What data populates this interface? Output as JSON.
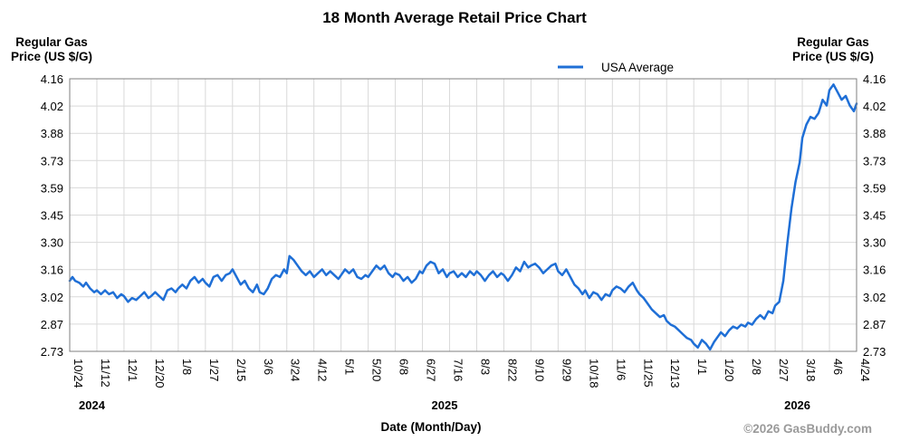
{
  "chart_data": {
    "type": "line",
    "title": "18 Month Average Retail Price Chart",
    "ylabel_left": [
      "Regular Gas",
      "Price (US $/G)"
    ],
    "ylabel_right": [
      "Regular Gas",
      "Price (US $/G)"
    ],
    "xlabel": "Date (Month/Day)",
    "ylim": [
      2.73,
      4.16
    ],
    "y_ticks": [
      "4.16",
      "4.02",
      "3.88",
      "3.73",
      "3.59",
      "3.45",
      "3.30",
      "3.16",
      "3.02",
      "2.87",
      "2.73"
    ],
    "x_tick_labels": [
      "10/24",
      "11/12",
      "12/1",
      "12/20",
      "1/8",
      "1/27",
      "2/15",
      "3/6",
      "3/24",
      "4/12",
      "5/1",
      "5/20",
      "6/8",
      "6/27",
      "7/16",
      "8/3",
      "8/22",
      "9/10",
      "9/29",
      "10/18",
      "11/6",
      "11/25",
      "12/13",
      "1/1",
      "1/20",
      "2/8",
      "2/27",
      "3/18",
      "4/6",
      "4/24"
    ],
    "years": [
      {
        "label": "2024",
        "at_tick": 0
      },
      {
        "label": "2025",
        "at_tick": 13
      },
      {
        "label": "2026",
        "at_tick": 26
      }
    ],
    "legend": "USA Average",
    "legend_position": "top-center",
    "grid": true,
    "series": [
      {
        "name": "USA Average",
        "color": "#1f6fd6",
        "points": [
          [
            0,
            3.1
          ],
          [
            0.1,
            3.12
          ],
          [
            0.2,
            3.1
          ],
          [
            0.35,
            3.09
          ],
          [
            0.5,
            3.07
          ],
          [
            0.6,
            3.09
          ],
          [
            0.75,
            3.06
          ],
          [
            0.9,
            3.04
          ],
          [
            1.0,
            3.05
          ],
          [
            1.15,
            3.03
          ],
          [
            1.3,
            3.05
          ],
          [
            1.45,
            3.03
          ],
          [
            1.6,
            3.04
          ],
          [
            1.75,
            3.01
          ],
          [
            1.9,
            3.03
          ],
          [
            2.0,
            3.02
          ],
          [
            2.15,
            2.99
          ],
          [
            2.3,
            3.01
          ],
          [
            2.45,
            3.0
          ],
          [
            2.6,
            3.02
          ],
          [
            2.75,
            3.04
          ],
          [
            2.9,
            3.01
          ],
          [
            3.0,
            3.02
          ],
          [
            3.15,
            3.04
          ],
          [
            3.3,
            3.02
          ],
          [
            3.45,
            3.0
          ],
          [
            3.6,
            3.05
          ],
          [
            3.75,
            3.06
          ],
          [
            3.9,
            3.04
          ],
          [
            4.0,
            3.06
          ],
          [
            4.15,
            3.08
          ],
          [
            4.3,
            3.06
          ],
          [
            4.45,
            3.1
          ],
          [
            4.6,
            3.12
          ],
          [
            4.75,
            3.09
          ],
          [
            4.9,
            3.11
          ],
          [
            5.0,
            3.09
          ],
          [
            5.15,
            3.07
          ],
          [
            5.3,
            3.12
          ],
          [
            5.45,
            3.13
          ],
          [
            5.6,
            3.1
          ],
          [
            5.75,
            3.13
          ],
          [
            5.9,
            3.14
          ],
          [
            6.0,
            3.16
          ],
          [
            6.15,
            3.12
          ],
          [
            6.3,
            3.08
          ],
          [
            6.45,
            3.1
          ],
          [
            6.6,
            3.06
          ],
          [
            6.75,
            3.04
          ],
          [
            6.9,
            3.08
          ],
          [
            7.0,
            3.04
          ],
          [
            7.15,
            3.03
          ],
          [
            7.3,
            3.06
          ],
          [
            7.45,
            3.11
          ],
          [
            7.6,
            3.13
          ],
          [
            7.75,
            3.12
          ],
          [
            7.9,
            3.16
          ],
          [
            8.0,
            3.14
          ],
          [
            8.1,
            3.23
          ],
          [
            8.25,
            3.21
          ],
          [
            8.4,
            3.18
          ],
          [
            8.55,
            3.15
          ],
          [
            8.7,
            3.13
          ],
          [
            8.85,
            3.15
          ],
          [
            9.0,
            3.12
          ],
          [
            9.15,
            3.14
          ],
          [
            9.3,
            3.16
          ],
          [
            9.45,
            3.13
          ],
          [
            9.6,
            3.15
          ],
          [
            9.75,
            3.13
          ],
          [
            9.9,
            3.11
          ],
          [
            10.0,
            3.13
          ],
          [
            10.15,
            3.16
          ],
          [
            10.3,
            3.14
          ],
          [
            10.45,
            3.16
          ],
          [
            10.6,
            3.12
          ],
          [
            10.75,
            3.11
          ],
          [
            10.9,
            3.13
          ],
          [
            11.0,
            3.12
          ],
          [
            11.15,
            3.15
          ],
          [
            11.3,
            3.18
          ],
          [
            11.45,
            3.16
          ],
          [
            11.6,
            3.18
          ],
          [
            11.75,
            3.14
          ],
          [
            11.9,
            3.12
          ],
          [
            12.0,
            3.14
          ],
          [
            12.15,
            3.13
          ],
          [
            12.3,
            3.1
          ],
          [
            12.45,
            3.12
          ],
          [
            12.6,
            3.09
          ],
          [
            12.75,
            3.11
          ],
          [
            12.9,
            3.15
          ],
          [
            13.0,
            3.14
          ],
          [
            13.15,
            3.18
          ],
          [
            13.3,
            3.2
          ],
          [
            13.45,
            3.19
          ],
          [
            13.6,
            3.14
          ],
          [
            13.75,
            3.16
          ],
          [
            13.9,
            3.12
          ],
          [
            14.0,
            3.14
          ],
          [
            14.15,
            3.15
          ],
          [
            14.3,
            3.12
          ],
          [
            14.45,
            3.14
          ],
          [
            14.6,
            3.12
          ],
          [
            14.75,
            3.15
          ],
          [
            14.9,
            3.13
          ],
          [
            15.0,
            3.15
          ],
          [
            15.15,
            3.13
          ],
          [
            15.3,
            3.1
          ],
          [
            15.45,
            3.13
          ],
          [
            15.6,
            3.15
          ],
          [
            15.75,
            3.12
          ],
          [
            15.9,
            3.14
          ],
          [
            16.0,
            3.13
          ],
          [
            16.15,
            3.1
          ],
          [
            16.3,
            3.13
          ],
          [
            16.45,
            3.17
          ],
          [
            16.6,
            3.15
          ],
          [
            16.75,
            3.2
          ],
          [
            16.9,
            3.17
          ],
          [
            17.0,
            3.18
          ],
          [
            17.15,
            3.19
          ],
          [
            17.3,
            3.17
          ],
          [
            17.45,
            3.14
          ],
          [
            17.6,
            3.16
          ],
          [
            17.75,
            3.18
          ],
          [
            17.9,
            3.19
          ],
          [
            18.0,
            3.15
          ],
          [
            18.15,
            3.13
          ],
          [
            18.3,
            3.16
          ],
          [
            18.45,
            3.12
          ],
          [
            18.6,
            3.08
          ],
          [
            18.75,
            3.06
          ],
          [
            18.9,
            3.03
          ],
          [
            19.0,
            3.05
          ],
          [
            19.15,
            3.01
          ],
          [
            19.3,
            3.04
          ],
          [
            19.45,
            3.03
          ],
          [
            19.6,
            3.0
          ],
          [
            19.75,
            3.03
          ],
          [
            19.9,
            3.02
          ],
          [
            20.0,
            3.05
          ],
          [
            20.15,
            3.07
          ],
          [
            20.3,
            3.06
          ],
          [
            20.45,
            3.04
          ],
          [
            20.6,
            3.07
          ],
          [
            20.75,
            3.09
          ],
          [
            20.9,
            3.05
          ],
          [
            21.0,
            3.03
          ],
          [
            21.15,
            3.01
          ],
          [
            21.3,
            2.98
          ],
          [
            21.45,
            2.95
          ],
          [
            21.6,
            2.93
          ],
          [
            21.75,
            2.91
          ],
          [
            21.9,
            2.92
          ],
          [
            22.0,
            2.89
          ],
          [
            22.15,
            2.87
          ],
          [
            22.3,
            2.86
          ],
          [
            22.45,
            2.84
          ],
          [
            22.6,
            2.82
          ],
          [
            22.75,
            2.8
          ],
          [
            22.9,
            2.79
          ],
          [
            23.0,
            2.77
          ],
          [
            23.15,
            2.75
          ],
          [
            23.3,
            2.79
          ],
          [
            23.45,
            2.77
          ],
          [
            23.6,
            2.74
          ],
          [
            23.75,
            2.78
          ],
          [
            23.9,
            2.81
          ],
          [
            24.0,
            2.83
          ],
          [
            24.15,
            2.81
          ],
          [
            24.3,
            2.84
          ],
          [
            24.45,
            2.86
          ],
          [
            24.6,
            2.85
          ],
          [
            24.75,
            2.87
          ],
          [
            24.9,
            2.86
          ],
          [
            25.0,
            2.88
          ],
          [
            25.15,
            2.87
          ],
          [
            25.3,
            2.9
          ],
          [
            25.45,
            2.92
          ],
          [
            25.6,
            2.9
          ],
          [
            25.75,
            2.94
          ],
          [
            25.9,
            2.93
          ],
          [
            26.0,
            2.97
          ],
          [
            26.15,
            2.99
          ],
          [
            26.3,
            3.1
          ],
          [
            26.45,
            3.3
          ],
          [
            26.6,
            3.48
          ],
          [
            26.75,
            3.62
          ],
          [
            26.9,
            3.72
          ],
          [
            27.0,
            3.85
          ],
          [
            27.15,
            3.92
          ],
          [
            27.3,
            3.96
          ],
          [
            27.45,
            3.95
          ],
          [
            27.6,
            3.98
          ],
          [
            27.75,
            4.05
          ],
          [
            27.9,
            4.02
          ],
          [
            28.0,
            4.1
          ],
          [
            28.15,
            4.13
          ],
          [
            28.3,
            4.09
          ],
          [
            28.45,
            4.05
          ],
          [
            28.6,
            4.07
          ],
          [
            28.75,
            4.02
          ],
          [
            28.9,
            3.99
          ],
          [
            29.0,
            4.03
          ]
        ]
      }
    ]
  },
  "footer": {
    "credit": "©2026 GasBuddy.com"
  }
}
